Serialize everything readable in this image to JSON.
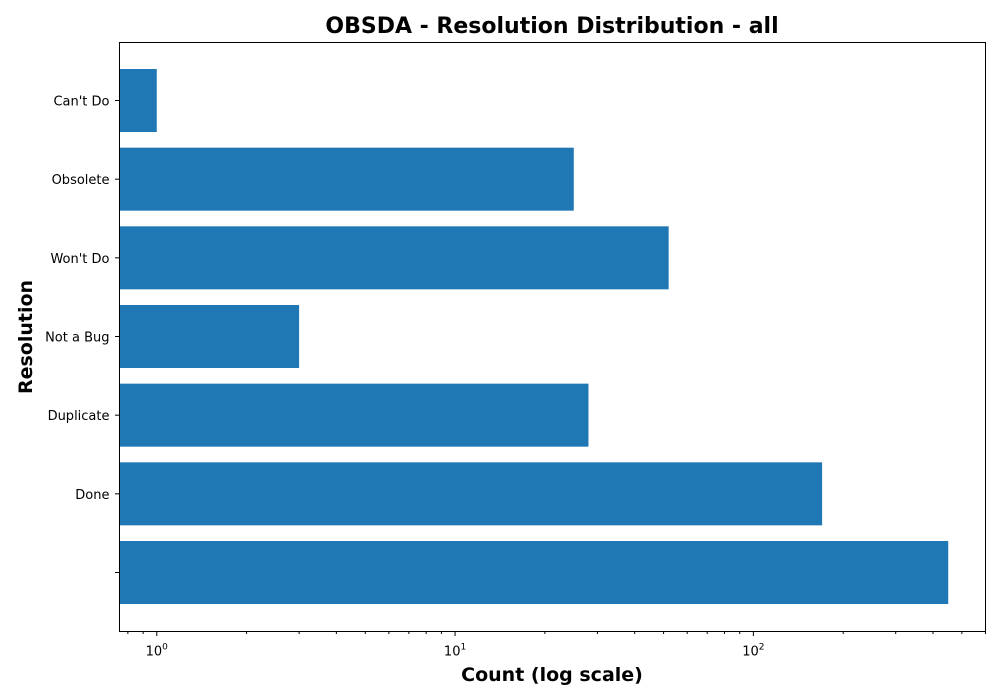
{
  "chart_data": {
    "type": "bar",
    "orientation": "horizontal",
    "title": "OBSDA - Resolution Distribution - all",
    "xlabel": "Count (log scale)",
    "ylabel": "Resolution",
    "x_scale": "log",
    "xlim": [
      0.75,
      600
    ],
    "x_ticks": [
      {
        "base": "10",
        "exp": "0",
        "value": 1
      },
      {
        "base": "10",
        "exp": "1",
        "value": 10
      },
      {
        "base": "10",
        "exp": "2",
        "value": 100
      }
    ],
    "categories": [
      "",
      "Done",
      "Duplicate",
      "Not a Bug",
      "Won't Do",
      "Obsolete",
      "Can't Do"
    ],
    "values": [
      450,
      170,
      28,
      3,
      52,
      25,
      1
    ],
    "grid": false,
    "colors": {
      "bar": "#1f77b4"
    }
  }
}
